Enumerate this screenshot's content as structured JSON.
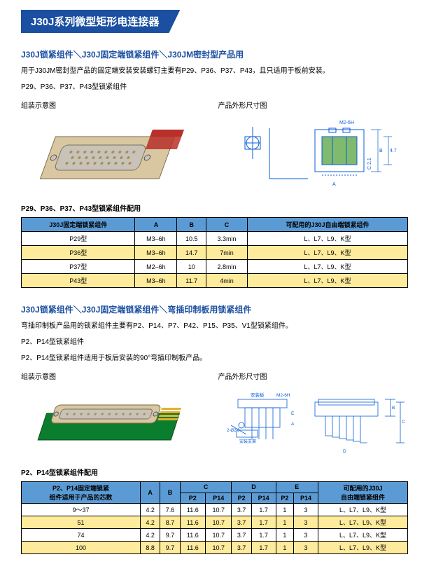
{
  "header": {
    "title": "J30J系列微型矩形电连接器"
  },
  "section1": {
    "title": "J30J锁紧组件＼J30J固定端锁紧组件＼J30JM密封型产品用",
    "para1": "用于J30JM密封型产品的固定端安装安装螺钉主要有P29、P36、P37、P43，且只适用于板前安装。",
    "para2": "P29、P36、P37、P43型锁紧组件",
    "label_left": "组装示意图",
    "label_right": "产品外形尺寸图",
    "dim_label": "M2-6H",
    "table_title": "P29、P36、P37、P43型锁紧组件配用",
    "table": {
      "headers": [
        "J30J固定端锁紧组件",
        "A",
        "B",
        "C",
        "可配用的J30J自由端锁紧组件"
      ],
      "rows": [
        {
          "cells": [
            "P29型",
            "M3–6h",
            "10.5",
            "3.3min",
            "L、L7、L9、K型"
          ],
          "class": "row-w"
        },
        {
          "cells": [
            "P36型",
            "M3–6h",
            "14.7",
            "7min",
            "L、L7、L9、K型"
          ],
          "class": "row-y"
        },
        {
          "cells": [
            "P37型",
            "M2–6h",
            "10",
            "2.8min",
            "L、L7、L9、K型"
          ],
          "class": "row-w"
        },
        {
          "cells": [
            "P43型",
            "M3–6h",
            "11.7",
            "4min",
            "L、L7、L9、K型"
          ],
          "class": "row-y"
        }
      ]
    }
  },
  "section2": {
    "title": "J30J锁紧组件＼J30J固定端锁紧组件＼弯插印制板用锁紧组件",
    "para1": "弯插印制板产品用的锁紧组件主要有P2、P14、P7、P42、P15、P35、V1型锁紧组件。",
    "para2": "P2、P14型锁紧组件",
    "para3": "P2、P14型锁紧组件适用于板后安装的90°弯插印制板产品。",
    "label_left": "组装示意图",
    "label_right": "产品外形尺寸图",
    "dim_mount": "安装板",
    "dim_thread": "M2-6H",
    "dim_pair": "2-Ø2.3",
    "dim_fix": "安装支架",
    "table_title": "P2、P14型锁紧组件配用",
    "table": {
      "header1": [
        "P2、P14固定端锁紧\n组件适用于产品的芯数",
        "A",
        "B",
        "C",
        "D",
        "E",
        "可配用的J30J\n自由端锁紧组件"
      ],
      "header2": [
        "P2",
        "P14",
        "P2",
        "P14",
        "P2",
        "P14"
      ],
      "rows": [
        {
          "cells": [
            "9～37",
            "4.2",
            "7.6",
            "11.6",
            "10.7",
            "3.7",
            "1.7",
            "1",
            "3",
            "L、L7、L9、K型"
          ],
          "class": "row-w"
        },
        {
          "cells": [
            "51",
            "4.2",
            "8.7",
            "11.6",
            "10.7",
            "3.7",
            "1.7",
            "1",
            "3",
            "L、L7、L9、K型"
          ],
          "class": "row-y"
        },
        {
          "cells": [
            "74",
            "4.2",
            "9.7",
            "11.6",
            "10.7",
            "3.7",
            "1.7",
            "1",
            "3",
            "L、L7、L9、K型"
          ],
          "class": "row-w"
        },
        {
          "cells": [
            "100",
            "8.8",
            "9.7",
            "11.6",
            "10.7",
            "3.7",
            "1.7",
            "1",
            "3",
            "L、L7、L9、K型"
          ],
          "class": "row-y"
        }
      ]
    }
  },
  "style": {
    "colors": {
      "brand": "#1a4fa1",
      "table_header": "#5b9bd5",
      "row_highlight": "#ffeb9c",
      "diagram_blue": "#0b5ed7",
      "diagram_green": "#7fba6e",
      "pcb_green": "#0a7e2e",
      "connector_tan": "#d8c7a0",
      "connector_metal": "#c9c2b8",
      "connector_red": "#b92f2a"
    }
  }
}
